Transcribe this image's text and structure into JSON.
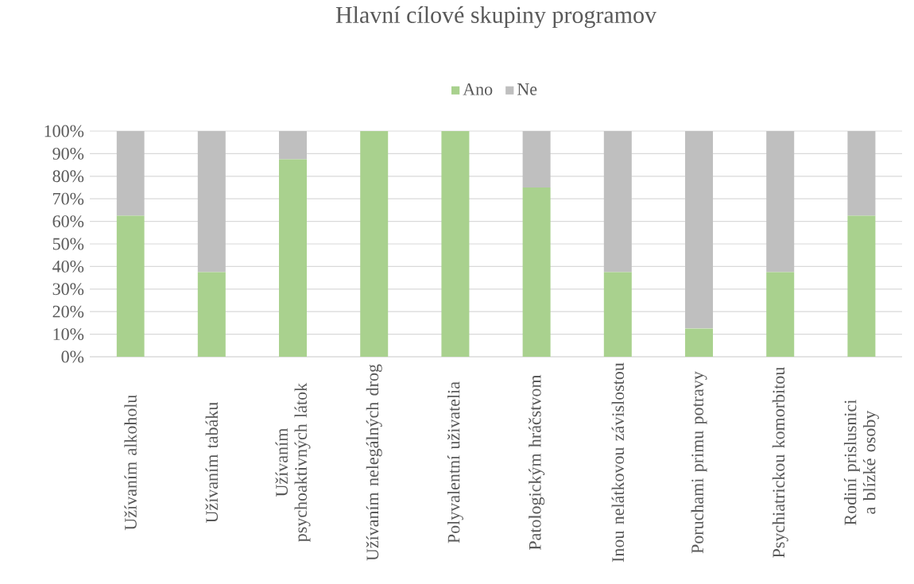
{
  "chart_data": {
    "type": "bar",
    "title": "Hlavní cílové skupiny programov",
    "categories": [
      "Užívaním alkoholu",
      "Užívaním tabáku",
      "Užívaním psychoaktivných látok",
      "Užívaním nelegálných drog",
      "Polyvalentní uživatelia",
      "Patologickým hráčstvom",
      "Inou nelátkovou závislostou",
      "Poruchami primu potravy",
      "Psychiatrickou komorbitou",
      "Rodiní prislusnici a blízké osoby"
    ],
    "series": [
      {
        "name": "Ano",
        "color": "#a9d18e",
        "values": [
          62.5,
          37.5,
          87.5,
          100,
          100,
          75,
          37.5,
          12.5,
          37.5,
          62.5
        ]
      },
      {
        "name": "Ne",
        "color": "#bfbfbf",
        "values": [
          37.5,
          62.5,
          12.5,
          0,
          0,
          25,
          62.5,
          87.5,
          62.5,
          37.5
        ]
      }
    ],
    "stacked": true,
    "ylim": [
      0,
      100
    ],
    "yticks": [
      {
        "value": 0,
        "label": "0%"
      },
      {
        "value": 10,
        "label": "10%"
      },
      {
        "value": 20,
        "label": "20%"
      },
      {
        "value": 30,
        "label": "30%"
      },
      {
        "value": 40,
        "label": "40%"
      },
      {
        "value": 50,
        "label": "50%"
      },
      {
        "value": 60,
        "label": "60%"
      },
      {
        "value": 70,
        "label": "70%"
      },
      {
        "value": 80,
        "label": "80%"
      },
      {
        "value": 90,
        "label": "90%"
      },
      {
        "value": 100,
        "label": "100%"
      }
    ],
    "grid": "y",
    "legend": "top"
  }
}
